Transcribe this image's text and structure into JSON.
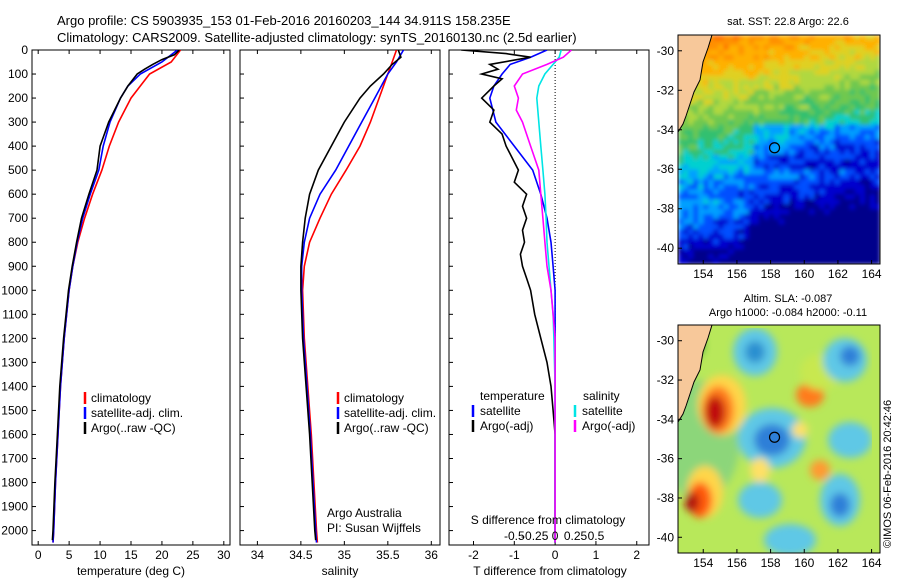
{
  "header": {
    "line1": "Argo profile: CS 5903935_153 01-Feb-2016 20160203_144 34.911S 158.235E",
    "line2": "Climatology: CARS2009. Satellite-adjusted climatology: synTS_20160130.nc (2.5d earlier)"
  },
  "colors": {
    "climatology": "#ff0000",
    "satellite": "#0000ff",
    "argo": "#000000",
    "sal_sat": "#00e5e5",
    "sal_argo": "#ff00ff"
  },
  "depth_axis": {
    "ticks": [
      0,
      100,
      200,
      300,
      400,
      500,
      600,
      700,
      800,
      900,
      1000,
      1100,
      1200,
      1300,
      1400,
      1500,
      1600,
      1700,
      1800,
      1900,
      2000
    ],
    "labels": [
      "0",
      "100",
      "200",
      "300",
      "400",
      "500",
      "600",
      "700",
      "800",
      "900",
      "1000",
      "1100",
      "1200",
      "1300",
      "1400",
      "1500",
      "1600",
      "1700",
      "1800",
      "1900",
      "2000"
    ],
    "ylim": [
      0,
      2060
    ]
  },
  "legend": {
    "climatology": "climatology",
    "satellite_adj": "satellite-adj. clim.",
    "argo_raw": "Argo(..raw -QC)",
    "diff_temperature": "temperature",
    "diff_salinity": "salinity",
    "diff_satellite": "satellite",
    "diff_argo": "Argo(-adj)"
  },
  "attribution": {
    "org": "Argo Australia",
    "pi": "PI: Susan Wijffels"
  },
  "chart_data": [
    {
      "type": "line",
      "name": "temperature",
      "xlabel": "temperature (deg C)",
      "ylabel": "depth",
      "xlim": [
        -1,
        31
      ],
      "xticks": [
        0,
        5,
        10,
        15,
        20,
        25,
        30
      ],
      "xtick_labels": [
        "0",
        "5",
        "10",
        "15",
        "20",
        "25",
        "30"
      ],
      "series": [
        {
          "name": "climatology",
          "color": "#ff0000",
          "depth": [
            0,
            50,
            100,
            150,
            200,
            300,
            400,
            500,
            600,
            700,
            800,
            900,
            1000,
            1200,
            1400,
            1600,
            1800,
            2000,
            2050
          ],
          "values": [
            23,
            21.5,
            18,
            16.5,
            15,
            13,
            11.5,
            10.3,
            8.8,
            7.5,
            6.4,
            5.6,
            5.0,
            4.2,
            3.6,
            3.2,
            2.8,
            2.5,
            2.4
          ]
        },
        {
          "name": "satellite-adj. clim.",
          "color": "#0000ff",
          "depth": [
            0,
            50,
            100,
            150,
            200,
            300,
            400,
            500,
            600,
            700,
            800,
            900,
            1000,
            1200,
            1400,
            1600,
            1800,
            2000,
            2050
          ],
          "values": [
            22.5,
            20,
            16.5,
            14.5,
            13.3,
            11.6,
            10.5,
            9.8,
            8.4,
            7.2,
            6.3,
            5.6,
            5.0,
            4.2,
            3.6,
            3.2,
            2.8,
            2.5,
            2.4
          ]
        },
        {
          "name": "Argo(..raw -QC)",
          "color": "#000000",
          "depth": [
            0,
            20,
            40,
            60,
            80,
            100,
            150,
            200,
            300,
            400,
            500,
            600,
            700,
            800,
            900,
            1000,
            1200,
            1400,
            1600,
            1800,
            2000,
            2040
          ],
          "values": [
            22.8,
            22,
            20,
            18.5,
            17.2,
            16,
            14.5,
            13.3,
            11.4,
            10.0,
            9.5,
            8.2,
            7.0,
            6.2,
            5.5,
            4.9,
            4.1,
            3.5,
            3.1,
            2.7,
            2.4,
            2.3
          ]
        }
      ]
    },
    {
      "type": "line",
      "name": "salinity",
      "xlabel": "salinity",
      "ylabel": "depth",
      "xlim": [
        33.8,
        36.1
      ],
      "xticks": [
        34,
        34.5,
        35,
        35.5,
        36
      ],
      "xtick_labels": [
        "34",
        "34.5",
        "35",
        "35.5",
        "36"
      ],
      "series": [
        {
          "name": "climatology",
          "color": "#ff0000",
          "depth": [
            0,
            50,
            100,
            200,
            300,
            400,
            500,
            600,
            700,
            800,
            900,
            1000,
            1200,
            1400,
            1600,
            1800,
            2000,
            2050
          ],
          "values": [
            35.6,
            35.55,
            35.5,
            35.4,
            35.3,
            35.18,
            35.02,
            34.85,
            34.72,
            34.6,
            34.54,
            34.52,
            34.54,
            34.58,
            34.62,
            34.65,
            34.68,
            34.69
          ]
        },
        {
          "name": "satellite-adj. clim.",
          "color": "#0000ff",
          "depth": [
            0,
            50,
            100,
            200,
            300,
            400,
            500,
            600,
            700,
            800,
            900,
            1000,
            1200,
            1400,
            1600,
            1800,
            2000,
            2050
          ],
          "values": [
            35.68,
            35.6,
            35.5,
            35.35,
            35.2,
            35.05,
            34.9,
            34.72,
            34.6,
            34.54,
            34.51,
            34.51,
            34.53,
            34.57,
            34.61,
            34.64,
            34.67,
            34.68
          ]
        },
        {
          "name": "Argo(..raw -QC)",
          "color": "#000000",
          "depth": [
            0,
            30,
            60,
            100,
            150,
            200,
            300,
            400,
            500,
            600,
            700,
            800,
            900,
            1000,
            1200,
            1400,
            1600,
            1800,
            2000,
            2040
          ],
          "values": [
            35.62,
            35.65,
            35.55,
            35.45,
            35.3,
            35.18,
            35.0,
            34.85,
            34.7,
            34.6,
            34.55,
            34.52,
            34.5,
            34.5,
            34.52,
            34.56,
            34.6,
            34.63,
            34.66,
            34.67
          ]
        }
      ]
    },
    {
      "type": "line",
      "name": "difference",
      "xlabel": "T difference from climatology",
      "xlabel_top": "S difference from climatology",
      "ylabel": "depth",
      "xlim": [
        -2.6,
        2.3
      ],
      "xticks": [
        -2,
        -1,
        0,
        1,
        2
      ],
      "xtick_labels": [
        "-2",
        "-1",
        "0",
        "1",
        "2"
      ],
      "s_xticks": [
        -1,
        -0.5,
        0,
        0.5,
        1
      ],
      "s_xtick_labels": [
        "-0.5",
        "-0.25",
        "0",
        "0.25",
        "0.5"
      ],
      "zero_line": true,
      "series": [
        {
          "name": "temperature satellite",
          "color": "#0000ff",
          "depth": [
            0,
            30,
            60,
            100,
            150,
            200,
            300,
            400,
            500,
            600,
            700,
            800,
            900,
            1000,
            1200,
            1400,
            1600,
            1800,
            2000,
            2050
          ],
          "values": [
            -0.2,
            -0.6,
            -1.1,
            -1.3,
            -1.5,
            -1.6,
            -1.45,
            -1.0,
            -0.55,
            -0.35,
            -0.2,
            -0.1,
            -0.05,
            0,
            0,
            0,
            0,
            0,
            0,
            0
          ]
        },
        {
          "name": "temperature Argo(-adj)",
          "color": "#000000",
          "depth": [
            0,
            15,
            30,
            60,
            80,
            100,
            120,
            150,
            200,
            250,
            300,
            350,
            400,
            500,
            550,
            600,
            650,
            700,
            750,
            800,
            850,
            900,
            950,
            1000,
            1100,
            1200,
            1300,
            1400,
            1500,
            1600,
            1800,
            2000,
            2050
          ],
          "values": [
            -2.3,
            -1.2,
            -0.6,
            -1.6,
            -1.4,
            -1.8,
            -1.3,
            -1.5,
            -1.8,
            -1.5,
            -1.6,
            -1.3,
            -1.2,
            -0.9,
            -1.0,
            -0.7,
            -0.8,
            -0.7,
            -0.8,
            -0.75,
            -0.85,
            -0.8,
            -0.7,
            -0.6,
            -0.5,
            -0.35,
            -0.2,
            -0.1,
            -0.05,
            0,
            0,
            0,
            0
          ]
        },
        {
          "name": "salinity satellite",
          "color": "#00e5e5",
          "depth": [
            0,
            30,
            60,
            100,
            150,
            200,
            300,
            400,
            500,
            600,
            700,
            800,
            900,
            1000,
            1100,
            1200,
            1400,
            1600,
            1800,
            2000,
            2050
          ],
          "values": [
            0.15,
            0.1,
            -0.05,
            -0.25,
            -0.4,
            -0.45,
            -0.4,
            -0.35,
            -0.3,
            -0.25,
            -0.22,
            -0.2,
            -0.15,
            -0.1,
            -0.05,
            -0.03,
            0,
            0,
            0,
            0,
            0
          ]
        },
        {
          "name": "salinity Argo(-adj)",
          "color": "#ff00ff",
          "depth": [
            0,
            30,
            60,
            100,
            150,
            200,
            250,
            300,
            400,
            500,
            600,
            700,
            800,
            900,
            1000,
            1100,
            1200,
            1400,
            1600,
            1800,
            2000,
            2050
          ],
          "values": [
            0.4,
            0.2,
            -0.2,
            -0.8,
            -1.0,
            -0.9,
            -0.95,
            -0.8,
            -0.6,
            -0.4,
            -0.35,
            -0.3,
            -0.25,
            -0.2,
            -0.1,
            -0.05,
            0,
            0,
            0,
            0,
            0,
            0
          ]
        }
      ]
    },
    {
      "type": "heatmap",
      "name": "sst_map",
      "title": "sat. SST: 22.8 Argo: 22.6",
      "xlim": [
        152.5,
        164.5
      ],
      "ylim": [
        -40.8,
        -29.2
      ],
      "xticks": [
        154,
        156,
        158,
        160,
        162,
        164
      ],
      "xtick_labels": [
        "154",
        "156",
        "158",
        "160",
        "162",
        "164"
      ],
      "yticks": [
        -30,
        -32,
        -34,
        -36,
        -38,
        -40
      ],
      "ytick_labels": [
        "-30",
        "-32",
        "-34",
        "-36",
        "-38",
        "-40"
      ],
      "marker": {
        "lon": 158.235,
        "lat": -34.911
      },
      "sat_sst": 22.8,
      "argo_sst": 22.6
    },
    {
      "type": "heatmap",
      "name": "sla_map",
      "title_line1": "Altim. SLA: -0.087",
      "title_line2": "Argo h1000: -0.084 h2000: -0.11",
      "xlim": [
        152.5,
        164.5
      ],
      "ylim": [
        -40.8,
        -29.2
      ],
      "xticks": [
        154,
        156,
        158,
        160,
        162,
        164
      ],
      "xtick_labels": [
        "154",
        "156",
        "158",
        "160",
        "162",
        "164"
      ],
      "yticks": [
        -30,
        -32,
        -34,
        -36,
        -38,
        -40
      ],
      "ytick_labels": [
        "-30",
        "-32",
        "-34",
        "-36",
        "-38",
        "-40"
      ],
      "marker": {
        "lon": 158.235,
        "lat": -34.911
      },
      "sla": -0.087,
      "h1000": -0.084,
      "h2000": -0.11
    }
  ],
  "footer": {
    "credit": "©IMOS 06-Feb-2016 20:42:46"
  }
}
